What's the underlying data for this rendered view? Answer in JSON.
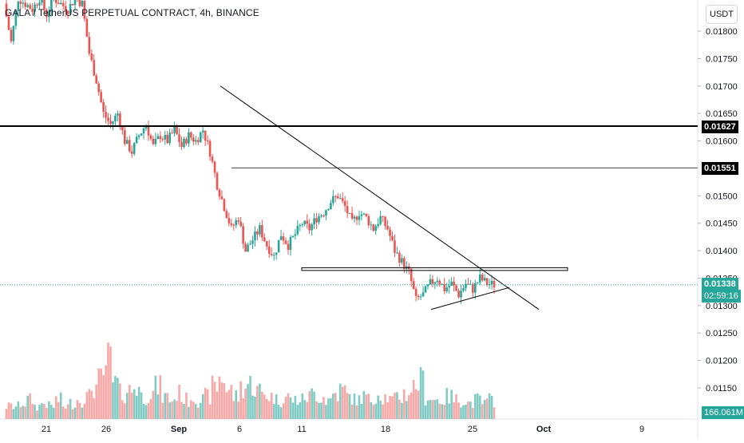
{
  "header": {
    "title": "GALA / TetherUS PERPETUAL CONTRACT, 4h, BINANCE",
    "currency": "USDT"
  },
  "price_badges": {
    "level_high": "0.01627",
    "level_mid": "0.01551",
    "last_price": "0.01338",
    "countdown": "02:59:16",
    "volume": "166.061M"
  },
  "colors": {
    "up": "#26a69a",
    "down": "#ef5350",
    "up_volume": "#80cbc4",
    "down_volume": "#f7a9a7",
    "line": "#000000",
    "last_price": "#26a69a"
  },
  "chart_data": {
    "type": "candlestick",
    "title": "GALA / TetherUS PERPETUAL CONTRACT, 4h, BINANCE",
    "y_axis": {
      "ticks": [
        "0.01800",
        "0.01750",
        "0.01700",
        "0.01650",
        "0.01600",
        "0.01500",
        "0.01450",
        "0.01400",
        "0.01350",
        "0.01300",
        "0.01250",
        "0.01200",
        "0.01150"
      ],
      "ylim": [
        0.0108,
        0.0186
      ]
    },
    "x_axis": {
      "ticks": [
        "21",
        "26",
        "Sep",
        "6",
        "11",
        "18",
        "25",
        "Oct",
        "9"
      ]
    },
    "horizontal_levels": [
      {
        "price": 0.01627,
        "label": "0.01627",
        "weight": "thick"
      },
      {
        "price": 0.01551,
        "label": "0.01551",
        "weight": "thin"
      }
    ],
    "support_zone": [
      0.01364,
      0.01369
    ],
    "trendline_descending": [
      [
        0.017,
        "Sep 3"
      ],
      [
        0.01293,
        "Oct 1"
      ]
    ],
    "trendline_ascending": [
      [
        0.01293,
        "Sep 21"
      ],
      [
        0.01333,
        "Sep 26"
      ]
    ],
    "last_price": 0.01338,
    "price_path": [
      0.0185,
      0.0178,
      0.0186,
      0.0185,
      0.0184,
      0.0186,
      0.0183,
      0.0186,
      0.0185,
      0.0184,
      0.0186,
      0.0185,
      0.0176,
      0.0171,
      0.0165,
      0.0163,
      0.0165,
      0.016,
      0.0158,
      0.0161,
      0.0163,
      0.0159,
      0.0161,
      0.016,
      0.0162,
      0.0159,
      0.0161,
      0.016,
      0.0162,
      0.0158,
      0.0152,
      0.0148,
      0.0144,
      0.0146,
      0.014,
      0.0142,
      0.0144,
      0.0141,
      0.0139,
      0.0143,
      0.0141,
      0.0143,
      0.0145,
      0.0144,
      0.0146,
      0.0147,
      0.0149,
      0.015,
      0.0148,
      0.0145,
      0.0147,
      0.0146,
      0.0144,
      0.0146,
      0.0144,
      0.014,
      0.0138,
      0.0136,
      0.0131,
      0.0132,
      0.0134,
      0.0135,
      0.0133,
      0.0134,
      0.0132,
      0.0134,
      0.0133,
      0.0135,
      0.0134,
      0.01338
    ],
    "volume_relative": [
      0.2,
      0.2,
      0.25,
      0.3,
      0.2,
      0.25,
      0.2,
      0.3,
      0.2,
      0.25,
      0.3,
      0.35,
      0.5,
      0.6,
      0.9,
      0.55,
      0.4,
      0.45,
      0.5,
      0.35,
      0.4,
      0.5,
      0.35,
      0.3,
      0.4,
      0.3,
      0.35,
      0.3,
      0.35,
      0.5,
      0.65,
      0.45,
      0.35,
      0.5,
      0.55,
      0.45,
      0.4,
      0.35,
      0.3,
      0.35,
      0.3,
      0.3,
      0.35,
      0.4,
      0.35,
      0.3,
      0.4,
      0.45,
      0.35,
      0.3,
      0.35,
      0.3,
      0.4,
      0.35,
      0.3,
      0.35,
      0.4,
      0.5,
      0.6,
      0.35,
      0.3,
      0.3,
      0.35,
      0.3,
      0.3,
      0.25,
      0.3,
      0.25,
      0.3,
      0.2
    ]
  }
}
